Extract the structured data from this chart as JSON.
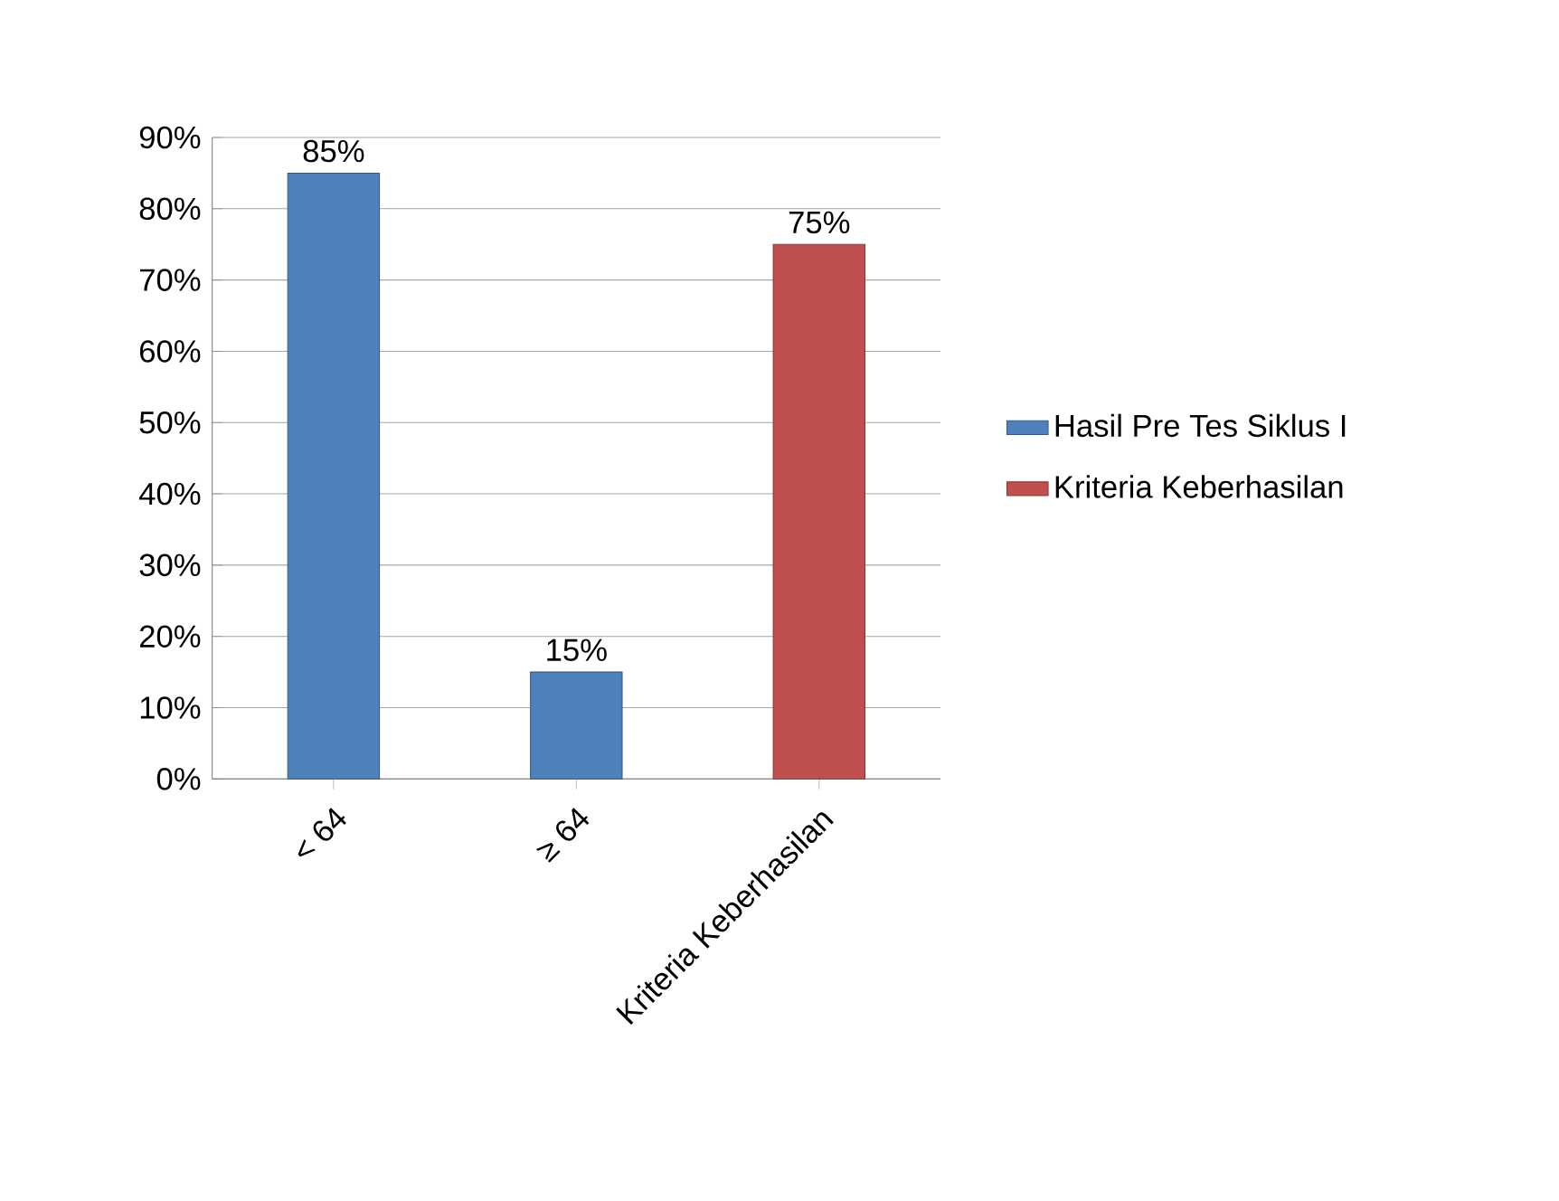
{
  "chart_data": {
    "type": "bar",
    "categories": [
      "< 64",
      "≥ 64",
      "Kriteria Keberhasilan"
    ],
    "series": [
      {
        "name": "Hasil Pre Tes Siklus I",
        "color": "#4f81bd",
        "values": [
          85,
          15,
          null
        ],
        "value_labels": [
          "85%",
          "15%",
          null
        ]
      },
      {
        "name": "Kriteria Keberhasilan",
        "color": "#c0504d",
        "values": [
          null,
          null,
          75
        ],
        "value_labels": [
          null,
          null,
          "75%"
        ]
      }
    ],
    "ylim": [
      0,
      90
    ],
    "yticks": [
      {
        "value": 0,
        "label": "0%"
      },
      {
        "value": 10,
        "label": "10%"
      },
      {
        "value": 20,
        "label": "20%"
      },
      {
        "value": 30,
        "label": "30%"
      },
      {
        "value": 40,
        "label": "40%"
      },
      {
        "value": 50,
        "label": "50%"
      },
      {
        "value": 60,
        "label": "60%"
      },
      {
        "value": 70,
        "label": "70%"
      },
      {
        "value": 80,
        "label": "80%"
      },
      {
        "value": 90,
        "label": "90%"
      }
    ],
    "grid": "y",
    "legend": "right"
  }
}
